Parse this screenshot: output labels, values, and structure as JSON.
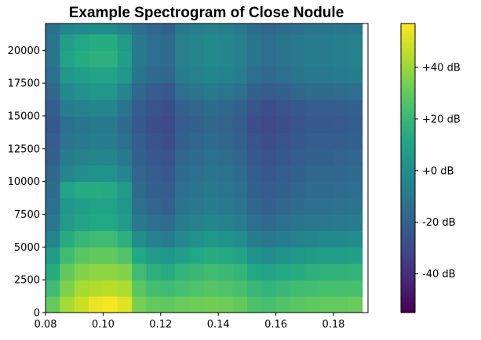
{
  "chart_data": {
    "type": "heatmap",
    "title": "Example Spectrogram of Close Nodule",
    "xlabel": "",
    "ylabel": "",
    "xlim": [
      0.08,
      0.192
    ],
    "ylim": [
      0,
      22050
    ],
    "x_ticks": [
      "0.08",
      "0.10",
      "0.12",
      "0.14",
      "0.16",
      "0.18"
    ],
    "x_tick_values": [
      0.08,
      0.1,
      0.12,
      0.14,
      0.16,
      0.18
    ],
    "y_ticks": [
      "0",
      "2500",
      "5000",
      "7500",
      "10000",
      "12500",
      "15000",
      "17500",
      "20000"
    ],
    "y_tick_values": [
      0,
      2500,
      5000,
      7500,
      10000,
      12500,
      15000,
      17500,
      20000
    ],
    "colorbar": {
      "colormap": "viridis",
      "range_db": [
        -55,
        57
      ],
      "ticks": [
        "-40 dB",
        "-20 dB",
        "+0 dB",
        "+20 dB",
        "+40 dB"
      ],
      "tick_values": [
        -40,
        -20,
        0,
        20,
        40
      ]
    },
    "time_bins": [
      0.0825,
      0.0875,
      0.0925,
      0.0975,
      0.1025,
      0.1075,
      0.1125,
      0.1175,
      0.1225,
      0.1275,
      0.1325,
      0.1375,
      0.1425,
      0.1475,
      0.1525,
      0.1575,
      0.1625,
      0.1675,
      0.1725,
      0.1775,
      0.1825,
      0.1875
    ],
    "freq_bins": [
      625,
      1875,
      3125,
      4375,
      5625,
      6875,
      8125,
      9375,
      10625,
      11875,
      13125,
      14375,
      15625,
      16875,
      18125,
      19375,
      20625,
      21875
    ],
    "values_db": [
      [
        30,
        42,
        48,
        54,
        56,
        52,
        34,
        30,
        29,
        31,
        32,
        33,
        32,
        30,
        25,
        24,
        26,
        28,
        29,
        30,
        30,
        31
      ],
      [
        22,
        35,
        42,
        44,
        45,
        43,
        28,
        23,
        22,
        24,
        26,
        27,
        26,
        24,
        20,
        18,
        20,
        22,
        23,
        24,
        24,
        24
      ],
      [
        14,
        30,
        36,
        38,
        38,
        36,
        22,
        16,
        14,
        18,
        20,
        22,
        21,
        19,
        12,
        10,
        12,
        14,
        16,
        17,
        17,
        18
      ],
      [
        6,
        22,
        28,
        30,
        30,
        26,
        12,
        6,
        4,
        8,
        12,
        14,
        13,
        10,
        2,
        0,
        2,
        4,
        6,
        8,
        8,
        9
      ],
      [
        -4,
        14,
        20,
        22,
        22,
        16,
        0,
        -6,
        -8,
        -2,
        2,
        4,
        3,
        0,
        -8,
        -10,
        -8,
        -6,
        -4,
        -2,
        -2,
        -1
      ],
      [
        -10,
        6,
        10,
        12,
        12,
        6,
        -10,
        -14,
        -15,
        -8,
        -6,
        -4,
        -5,
        -8,
        -14,
        -16,
        -14,
        -12,
        -10,
        -10,
        -9,
        -8
      ],
      [
        -14,
        4,
        8,
        10,
        10,
        4,
        -14,
        -18,
        -20,
        -12,
        -10,
        -8,
        -9,
        -12,
        -18,
        -20,
        -18,
        -16,
        -14,
        -14,
        -13,
        -12
      ],
      [
        -16,
        10,
        14,
        14,
        13,
        6,
        -16,
        -20,
        -22,
        -14,
        -12,
        -10,
        -11,
        -14,
        -20,
        -22,
        -20,
        -18,
        -16,
        -16,
        -15,
        -14
      ],
      [
        -18,
        -4,
        0,
        2,
        2,
        -4,
        -18,
        -22,
        -24,
        -16,
        -14,
        -12,
        -13,
        -16,
        -22,
        -24,
        -22,
        -20,
        -18,
        -18,
        -17,
        -16
      ],
      [
        -20,
        -8,
        -6,
        -4,
        -4,
        -10,
        -20,
        -24,
        -26,
        -18,
        -16,
        -14,
        -15,
        -18,
        -24,
        -26,
        -24,
        -22,
        -20,
        -20,
        -19,
        -18
      ],
      [
        -22,
        -12,
        -10,
        -8,
        -8,
        -14,
        -22,
        -26,
        -28,
        -20,
        -18,
        -16,
        -17,
        -20,
        -26,
        -28,
        -26,
        -24,
        -22,
        -22,
        -21,
        -20
      ],
      [
        -24,
        -14,
        -12,
        -10,
        -10,
        -16,
        -24,
        -28,
        -30,
        -22,
        -20,
        -18,
        -19,
        -22,
        -28,
        -30,
        -28,
        -26,
        -24,
        -24,
        -23,
        -22
      ],
      [
        -22,
        -8,
        -6,
        -4,
        -4,
        -12,
        -22,
        -26,
        -28,
        -20,
        -18,
        -16,
        -17,
        -20,
        -26,
        -28,
        -26,
        -24,
        -22,
        -22,
        -21,
        -20
      ],
      [
        -18,
        -2,
        2,
        4,
        4,
        -4,
        -18,
        -22,
        -24,
        -14,
        -12,
        -10,
        -11,
        -14,
        -20,
        -22,
        -20,
        -18,
        -16,
        -16,
        -15,
        -14
      ],
      [
        -14,
        4,
        8,
        10,
        10,
        4,
        -12,
        -16,
        -18,
        -8,
        -6,
        -4,
        -5,
        -8,
        -14,
        -16,
        -14,
        -12,
        -10,
        -10,
        -9,
        -8
      ],
      [
        -12,
        10,
        14,
        16,
        16,
        8,
        -10,
        -14,
        -16,
        -6,
        -4,
        -2,
        -3,
        -6,
        -12,
        -14,
        -12,
        -10,
        -8,
        -8,
        -7,
        -6
      ],
      [
        -12,
        8,
        12,
        14,
        14,
        6,
        -10,
        -14,
        -16,
        -6,
        -4,
        -2,
        -3,
        -6,
        -12,
        -14,
        -12,
        -10,
        -8,
        -8,
        -7,
        -6
      ],
      [
        -14,
        -4,
        -2,
        0,
        0,
        -6,
        -14,
        -18,
        -20,
        -10,
        -8,
        -6,
        -7,
        -10,
        -16,
        -18,
        -16,
        -14,
        -12,
        -12,
        -11,
        -10
      ]
    ]
  }
}
